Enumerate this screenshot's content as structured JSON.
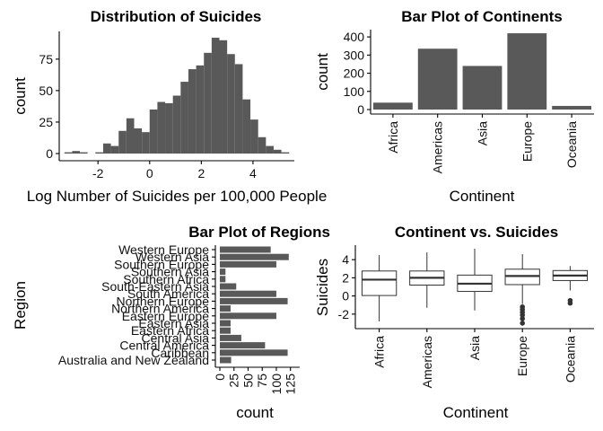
{
  "chart_data": [
    {
      "type": "bar",
      "subtype": "histogram",
      "title": "Distribution of Suicides",
      "xlabel": "Log Number of Suicides per 100,000 People",
      "ylabel": "count",
      "xlim": [
        -3.5,
        5.6
      ],
      "ylim": [
        0,
        97
      ],
      "xticks": [
        -2,
        0,
        2,
        4
      ],
      "yticks": [
        0,
        25,
        50,
        75
      ],
      "bin_width": 0.3,
      "bin_starts": [
        -3.3,
        -3.0,
        -2.7,
        -2.4,
        -2.1,
        -1.8,
        -1.5,
        -1.2,
        -0.9,
        -0.6,
        -0.3,
        0.0,
        0.3,
        0.6,
        0.9,
        1.2,
        1.5,
        1.8,
        2.1,
        2.4,
        2.7,
        3.0,
        3.3,
        3.6,
        3.9,
        4.2,
        4.5,
        4.8,
        5.1
      ],
      "values": [
        1,
        2,
        1,
        0,
        1,
        8,
        6,
        18,
        28,
        20,
        17,
        35,
        41,
        40,
        46,
        57,
        67,
        70,
        80,
        92,
        90,
        79,
        71,
        43,
        27,
        13,
        6,
        3,
        1
      ],
      "grid": false
    },
    {
      "type": "bar",
      "title": "Bar Plot of Continents",
      "xlabel": "Continent",
      "ylabel": "count",
      "categories": [
        "Africa",
        "Americas",
        "Asia",
        "Europe",
        "Oceania"
      ],
      "values": [
        38,
        335,
        240,
        420,
        20
      ],
      "ylim": [
        0,
        440
      ],
      "yticks": [
        0,
        100,
        200,
        300,
        400
      ],
      "grid": false
    },
    {
      "type": "bar",
      "orientation": "horizontal",
      "title": "Bar Plot of Regions",
      "xlabel": "count",
      "ylabel": "Region",
      "categories": [
        "Australia and New Zealand",
        "Caribbean",
        "Central America",
        "Central Asia",
        "Eastern Africa",
        "Eastern Asia",
        "Eastern Europe",
        "Northern America",
        "Northern Europe",
        "South America",
        "South-Eastern Asia",
        "Southern Africa",
        "Southern Asia",
        "Southern Europe",
        "Western Asia",
        "Western Europe"
      ],
      "values": [
        20,
        120,
        80,
        38,
        19,
        19,
        100,
        19,
        120,
        100,
        29,
        10,
        10,
        100,
        122,
        90
      ],
      "xlim": [
        0,
        135
      ],
      "xticks": [
        0,
        25,
        50,
        75,
        100,
        125
      ],
      "grid": false
    },
    {
      "type": "box",
      "title": "Continent vs. Suicides",
      "xlabel": "Continent",
      "ylabel": "Suicides",
      "categories": [
        "Africa",
        "Americas",
        "Asia",
        "Europe",
        "Oceania"
      ],
      "boxes": [
        {
          "min": -2.8,
          "q1": 0.05,
          "median": 1.8,
          "q3": 2.75,
          "max": 4.5,
          "outliers": []
        },
        {
          "min": -1.3,
          "q1": 1.2,
          "median": 2.0,
          "q3": 2.75,
          "max": 4.8,
          "outliers": []
        },
        {
          "min": -1.6,
          "q1": 0.5,
          "median": 1.35,
          "q3": 2.3,
          "max": 5.2,
          "outliers": []
        },
        {
          "min": -0.9,
          "q1": 1.25,
          "median": 2.2,
          "q3": 2.95,
          "max": 4.6,
          "outliers": [
            -1.2,
            -1.5,
            -1.8,
            -2.1,
            -2.5,
            -3.0
          ]
        },
        {
          "min": 0.6,
          "q1": 1.7,
          "median": 2.25,
          "q3": 2.8,
          "max": 3.3,
          "outliers": [
            -0.5,
            -0.8
          ]
        }
      ],
      "ylim": [
        -3.6,
        5.6
      ],
      "yticks": [
        -2,
        0,
        2,
        4
      ],
      "yticklabels": [
        "-2",
        "0",
        "2",
        "4"
      ],
      "grid": false
    }
  ]
}
